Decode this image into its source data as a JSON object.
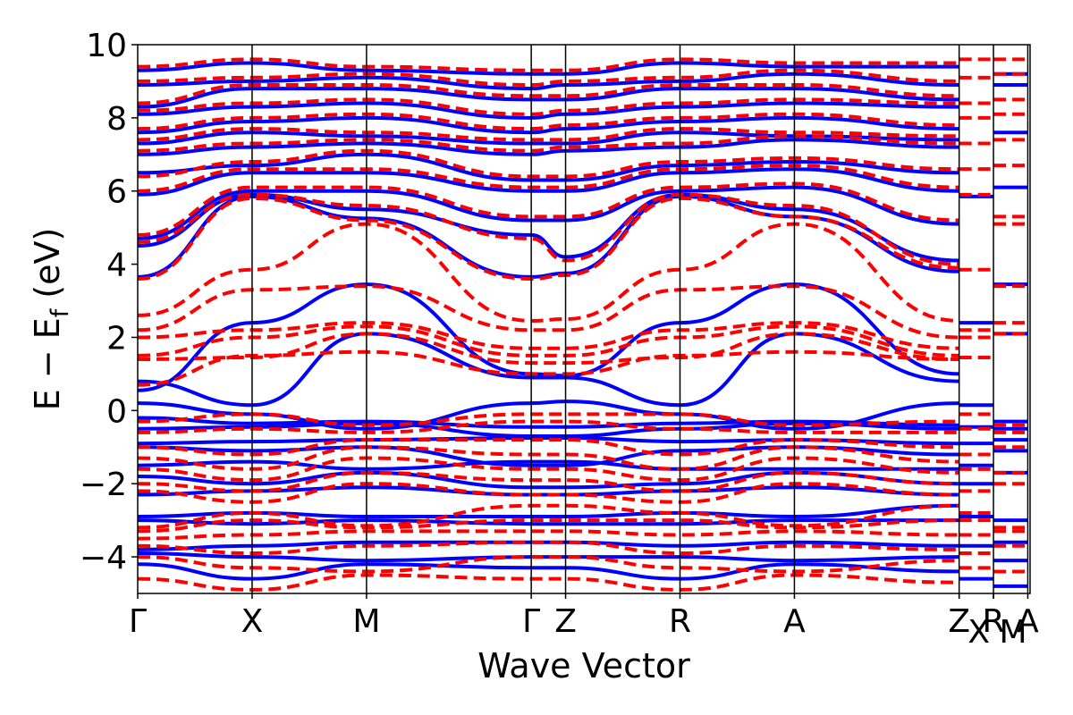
{
  "chart_data": {
    "type": "line",
    "xlabel": "Wave Vector",
    "ylabel_parts": {
      "lead": "E − E",
      "sub": "f",
      "tail": " (eV)"
    },
    "ylim": [
      -5,
      10
    ],
    "yticks": [
      {
        "value": 10,
        "label": "10"
      },
      {
        "value": 8,
        "label": "8"
      },
      {
        "value": 6,
        "label": "6"
      },
      {
        "value": 4,
        "label": "4"
      },
      {
        "value": 2,
        "label": "2"
      },
      {
        "value": 0,
        "label": "0"
      },
      {
        "value": -2,
        "label": "−2"
      },
      {
        "value": -4,
        "label": "−4"
      }
    ],
    "xlim": [
      0,
      7.8
    ],
    "kpoints": [
      {
        "label": "Γ",
        "x": 0
      },
      {
        "label": "X",
        "x": 1.0
      },
      {
        "label": "M",
        "x": 2.0
      },
      {
        "label": "Γ",
        "x": 3.44
      },
      {
        "label": "Z",
        "x": 3.74
      },
      {
        "label": "R",
        "x": 4.74
      },
      {
        "label": "A",
        "x": 5.74
      },
      {
        "label": "Z",
        "x": 7.18
      },
      {
        "label": "X",
        "x": 7.18
      },
      {
        "label": "R",
        "x": 7.48
      },
      {
        "label": "M",
        "x": 7.48
      },
      {
        "label": "A",
        "x": 7.78
      }
    ],
    "series": [
      {
        "style": "solid",
        "color": "#0000ff",
        "x": [
          0,
          1.0,
          2.0,
          3.44,
          3.74,
          4.74,
          5.74,
          7.18
        ],
        "bands": [
          [
            0.55,
            2.4,
            3.45,
            1.0,
            0.95,
            2.4,
            3.45,
            1.0
          ],
          [
            0.8,
            0.15,
            2.1,
            0.9,
            0.9,
            0.15,
            2.1,
            0.8
          ],
          [
            0.2,
            -0.1,
            -0.5,
            0.2,
            0.25,
            -0.1,
            -0.5,
            0.2
          ],
          [
            -0.2,
            -0.35,
            -0.3,
            -0.45,
            -0.45,
            -0.35,
            -0.3,
            -0.4
          ],
          [
            -0.5,
            -0.45,
            -0.35,
            -0.7,
            -0.7,
            -0.5,
            -0.35,
            -0.5
          ],
          [
            -0.9,
            -0.85,
            -0.8,
            -0.75,
            -0.75,
            -0.85,
            -0.8,
            -0.9
          ],
          [
            -1.0,
            -1.1,
            -1.0,
            -1.5,
            -1.5,
            -1.1,
            -1.0,
            -1.2
          ],
          [
            -1.5,
            -1.4,
            -1.6,
            -1.4,
            -1.4,
            -1.6,
            -1.6,
            -1.6
          ],
          [
            -1.8,
            -2.0,
            -1.7,
            -2.1,
            -2.1,
            -2.0,
            -1.7,
            -2.0
          ],
          [
            -2.3,
            -2.2,
            -2.1,
            -2.3,
            -2.3,
            -2.2,
            -2.1,
            -2.3
          ],
          [
            -2.9,
            -2.8,
            -2.9,
            -2.9,
            -2.9,
            -2.8,
            -2.9,
            -2.6
          ],
          [
            -3.0,
            -3.1,
            -3.0,
            -3.1,
            -3.1,
            -3.1,
            -3.0,
            -3.0
          ],
          [
            -3.8,
            -3.7,
            -3.6,
            -3.6,
            -3.6,
            -3.7,
            -3.6,
            -3.7
          ],
          [
            -3.9,
            -4.0,
            -4.1,
            -4.0,
            -4.0,
            -4.0,
            -4.1,
            -4.0
          ],
          [
            -4.2,
            -4.6,
            -4.2,
            -4.3,
            -4.3,
            -4.6,
            -4.2,
            -4.4
          ],
          [
            3.65,
            5.85,
            5.25,
            3.65,
            3.75,
            5.85,
            5.3,
            3.8
          ],
          [
            4.5,
            5.9,
            5.5,
            4.8,
            4.2,
            5.9,
            5.5,
            4.1
          ],
          [
            4.7,
            6.0,
            6.0,
            5.2,
            5.2,
            6.0,
            6.1,
            5.1
          ],
          [
            5.9,
            6.5,
            6.5,
            6.0,
            6.0,
            6.5,
            6.6,
            6.0
          ],
          [
            6.5,
            6.7,
            7.0,
            6.3,
            6.3,
            6.7,
            6.8,
            6.5
          ],
          [
            7.0,
            7.2,
            7.3,
            7.0,
            7.1,
            7.2,
            7.4,
            7.2
          ],
          [
            7.3,
            7.6,
            7.5,
            7.3,
            7.3,
            7.6,
            7.5,
            7.4
          ],
          [
            7.6,
            7.9,
            8.0,
            7.6,
            7.7,
            7.9,
            8.0,
            7.7
          ],
          [
            8.1,
            8.3,
            8.4,
            8.0,
            8.1,
            8.3,
            8.4,
            8.3
          ],
          [
            8.3,
            8.8,
            8.8,
            8.5,
            8.5,
            8.8,
            8.8,
            8.5
          ],
          [
            8.9,
            9.0,
            9.1,
            8.8,
            8.9,
            9.0,
            9.2,
            8.9
          ],
          [
            9.3,
            9.5,
            9.3,
            9.2,
            9.2,
            9.5,
            9.4,
            9.4
          ]
        ]
      },
      {
        "style": "dashed",
        "color": "#ff0000",
        "x": [
          0,
          1.0,
          2.0,
          3.44,
          3.74,
          4.74,
          5.74,
          7.18
        ],
        "bands": [
          [
            2.6,
            3.85,
            5.1,
            2.45,
            2.5,
            3.85,
            5.1,
            2.45
          ],
          [
            2.2,
            3.3,
            3.4,
            2.2,
            2.2,
            3.3,
            3.4,
            2.0
          ],
          [
            2.0,
            2.2,
            2.4,
            1.7,
            1.7,
            2.2,
            2.4,
            1.7
          ],
          [
            1.5,
            2.0,
            2.3,
            1.5,
            1.5,
            2.0,
            2.3,
            1.5
          ],
          [
            1.4,
            1.45,
            2.1,
            1.3,
            1.3,
            1.45,
            2.1,
            1.4
          ],
          [
            0.7,
            1.5,
            1.6,
            1.0,
            1.0,
            1.5,
            1.6,
            1.4
          ],
          [
            -0.3,
            -0.1,
            -0.4,
            -0.1,
            -0.1,
            -0.1,
            -0.4,
            -0.3
          ],
          [
            -0.6,
            -0.5,
            -0.6,
            -0.3,
            -0.3,
            -0.5,
            -0.6,
            -0.6
          ],
          [
            -1.0,
            -1.2,
            -0.8,
            -0.8,
            -0.8,
            -1.2,
            -0.8,
            -1.0
          ],
          [
            -1.3,
            -1.6,
            -1.0,
            -1.2,
            -1.2,
            -1.6,
            -1.0,
            -1.4
          ],
          [
            -1.6,
            -1.9,
            -1.3,
            -1.6,
            -1.6,
            -1.9,
            -1.3,
            -1.7
          ],
          [
            -2.0,
            -2.2,
            -1.7,
            -1.9,
            -1.9,
            -2.2,
            -1.7,
            -2.0
          ],
          [
            -2.2,
            -2.5,
            -2.0,
            -2.3,
            -2.3,
            -2.5,
            -2.0,
            -2.3
          ],
          [
            -3.2,
            -2.8,
            -3.15,
            -2.6,
            -2.6,
            -2.8,
            -3.15,
            -2.6
          ],
          [
            -3.3,
            -3.0,
            -3.2,
            -3.0,
            -3.0,
            -3.0,
            -3.2,
            -3.0
          ],
          [
            -3.5,
            -3.4,
            -3.3,
            -3.3,
            -3.3,
            -3.4,
            -3.3,
            -3.4
          ],
          [
            -3.7,
            -3.9,
            -3.7,
            -3.6,
            -3.6,
            -3.9,
            -3.7,
            -3.8
          ],
          [
            -4.0,
            -4.3,
            -4.4,
            -4.0,
            -4.0,
            -4.3,
            -4.4,
            -4.1
          ],
          [
            -4.6,
            -4.9,
            -4.5,
            -4.6,
            -4.6,
            -4.9,
            -4.5,
            -4.7
          ],
          [
            3.6,
            5.8,
            5.2,
            3.6,
            3.7,
            5.8,
            5.3,
            3.9
          ],
          [
            4.6,
            5.9,
            5.6,
            4.7,
            4.1,
            5.9,
            5.6,
            4.0
          ],
          [
            4.8,
            6.1,
            6.1,
            5.3,
            5.3,
            6.1,
            6.2,
            5.2
          ],
          [
            6.0,
            6.6,
            6.6,
            6.1,
            6.1,
            6.6,
            6.7,
            6.1
          ],
          [
            6.4,
            6.8,
            7.1,
            6.4,
            6.4,
            6.8,
            6.9,
            6.6
          ],
          [
            7.1,
            7.3,
            7.4,
            7.1,
            7.2,
            7.3,
            7.5,
            7.3
          ],
          [
            7.4,
            7.7,
            7.6,
            7.4,
            7.4,
            7.7,
            7.6,
            7.5
          ],
          [
            7.7,
            8.0,
            8.1,
            7.7,
            7.8,
            8.0,
            8.1,
            7.8
          ],
          [
            8.2,
            8.4,
            8.5,
            8.1,
            8.2,
            8.4,
            8.5,
            8.4
          ],
          [
            8.4,
            8.9,
            8.9,
            8.6,
            8.6,
            8.9,
            8.9,
            8.6
          ],
          [
            9.0,
            9.1,
            9.2,
            8.9,
            9.0,
            9.1,
            9.3,
            9.0
          ],
          [
            9.4,
            9.6,
            9.4,
            9.3,
            9.3,
            9.6,
            9.5,
            9.5
          ]
        ]
      }
    ],
    "short_segments": [
      {
        "style": "solid",
        "color": "#0000ff",
        "segments": [
          [
            7.18,
            7.48,
            [
              5.85,
              2.4,
              0.15,
              -0.45,
              -0.9,
              -1.5,
              -2.0,
              -2.9,
              -3.7,
              -4.6
            ]
          ],
          [
            7.48,
            7.78,
            [
              3.45,
              2.1,
              -0.3,
              -0.5,
              -0.8,
              -1.1,
              -1.7,
              -3.0,
              -3.6,
              -4.1,
              -4.8,
              6.1,
              7.6,
              8.9,
              9.2
            ]
          ]
        ]
      },
      {
        "style": "dashed",
        "color": "#ff0000",
        "segments": [
          [
            7.18,
            7.48,
            [
              3.85,
              2.2,
              2.0,
              1.45,
              -0.1,
              -0.5,
              -1.2,
              -1.6,
              -2.2,
              -2.8,
              -3.0,
              -3.4,
              -3.9,
              -4.3,
              5.9,
              6.6,
              7.3,
              8.0,
              8.4,
              9.1,
              9.6
            ]
          ],
          [
            7.48,
            7.78,
            [
              5.1,
              5.3,
              3.4,
              2.4,
              2.1,
              -0.4,
              -0.6,
              -1.0,
              -1.7,
              -2.0,
              -3.2,
              -3.3,
              -3.7,
              -4.4,
              6.7,
              7.4,
              8.1,
              8.5,
              9.2,
              9.6
            ]
          ]
        ]
      }
    ]
  }
}
